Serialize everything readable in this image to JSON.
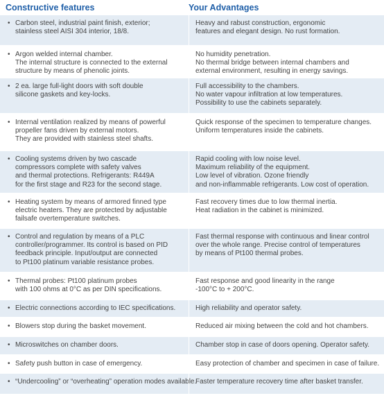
{
  "headers": {
    "features": "Constructive features",
    "advantages": "Your Advantages"
  },
  "rows": [
    {
      "feature": [
        "Carbon steel, industrial paint finish, exterior;",
        "stainless steel AISI 304 interior, 18/8."
      ],
      "advantage": [
        "Heavy and rabust construction, ergonomic",
        "features and elegant design. No rust formation."
      ]
    },
    {
      "feature": [
        "Argon welded internal chamber.",
        "The internal structure is connected to the external",
        "structure by means of phenolic joints."
      ],
      "advantage": [
        "No humidity penetration.",
        "No thermal bridge between internal chambers and",
        "external environment, resulting in energy savings."
      ]
    },
    {
      "feature": [
        "2 ea. large full-light doors with soft double",
        "silicone gaskets and key-locks."
      ],
      "advantage": [
        "Full accessibility to the chambers.",
        "No water vapour infiltration at low temperatures.",
        "Possibility to use the cabinets separately."
      ]
    },
    {
      "feature": [
        "Internal ventilation realized by means of powerful",
        "propeller fans driven by external motors.",
        "They are provided with stainless steel shafts."
      ],
      "advantage": [
        "Quick response of the specimen to temperature changes.",
        "Uniform temperatures inside the cabinets."
      ]
    },
    {
      "feature": [
        "Cooling systems driven by two cascade",
        "compressors complete with safety valves",
        "and thermal protections. Refrigerants: R449A",
        "for the first stage and R23 for the second stage."
      ],
      "advantage": [
        "Rapid cooling with low noise level.",
        "Maximum reliability of the equipment.",
        "Low level of vibration. Ozone friendly",
        "and non-inflammable refrigerants. Low cost of operation."
      ]
    },
    {
      "feature": [
        "Heating system by means of armored finned type",
        "electric heaters. They are protected by adjustable",
        "failsafe overtemperature switches."
      ],
      "advantage": [
        "Fast recovery times due to low thermal inertia.",
        "Heat radiation in the cabinet is minimized."
      ]
    },
    {
      "feature": [
        "Control and regulation by means of a PLC",
        "controller/programmer. Its control is based on PID",
        "feedback principle. Input/output are connected",
        "to Pt100 platinum variable resistance probes."
      ],
      "advantage": [
        "Fast thermal response with continuous and linear control",
        "over the whole range. Precise control of temperatures",
        "by means of Pt100 thermal probes."
      ]
    },
    {
      "feature": [
        "Thermal probes: Pt100 platinum probes",
        "with 100 ohms at 0°C as per DIN specifications."
      ],
      "advantage": [
        "Fast response and good linearity in the range",
        "-100°C to + 200°C."
      ]
    },
    {
      "feature": [
        "Electric connections according to IEC specifications."
      ],
      "advantage": [
        "High reliability and operator safety."
      ]
    },
    {
      "feature": [
        "Blowers stop during the basket movement."
      ],
      "advantage": [
        "Reduced air mixing between the cold and hot chambers."
      ]
    },
    {
      "feature": [
        "Microswitches on chamber doors."
      ],
      "advantage": [
        "Chamber stop in case of doors opening. Operator safety."
      ]
    },
    {
      "feature": [
        "Safety push button in case of emergency."
      ],
      "advantage": [
        "Easy protection of chamber and specimen in case of failure."
      ]
    },
    {
      "feature": [
        "“Undercooling” or “overheating” operation modes available."
      ],
      "advantage": [
        "Faster temperature recovery time after basket transfer."
      ]
    }
  ],
  "bullet_char": "•",
  "colors": {
    "header": "#1f5fa8",
    "row_shade": "#e4ecf4",
    "text": "#444444"
  }
}
